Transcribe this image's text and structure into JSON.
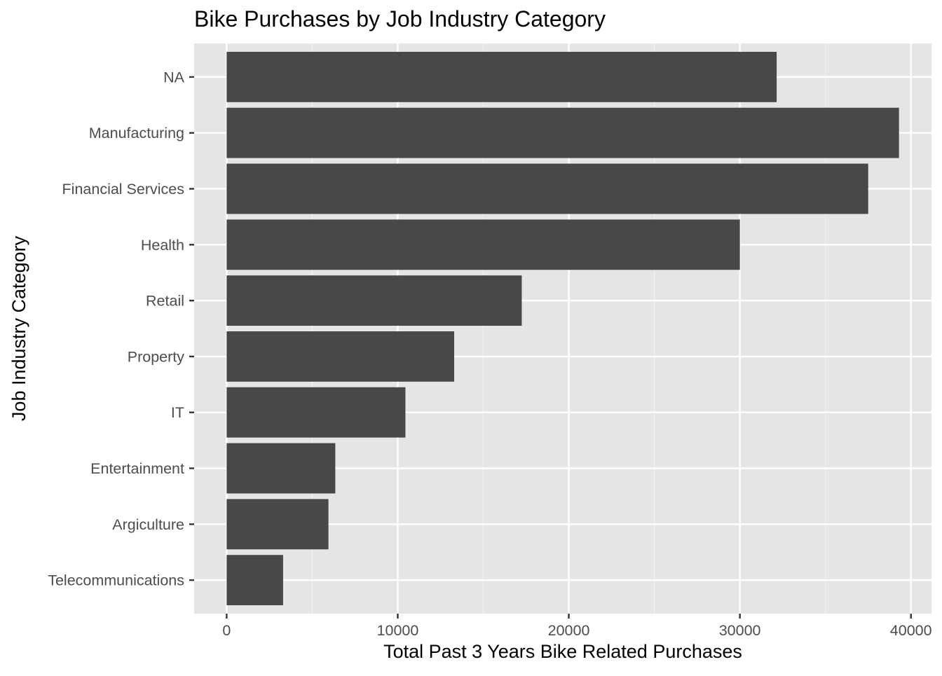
{
  "chart_data": {
    "type": "bar",
    "orientation": "horizontal",
    "title": "Bike Purchases by Job Industry Category",
    "xlabel": "Total Past 3 Years Bike Related Purchases",
    "ylabel": "Job Industry Category",
    "categories": [
      "NA",
      "Manufacturing",
      "Financial Services",
      "Health",
      "Retail",
      "Property",
      "IT",
      "Entertainment",
      "Argiculture",
      "Telecommunications"
    ],
    "values": [
      32150,
      39300,
      37500,
      30000,
      17250,
      13300,
      10450,
      6350,
      5950,
      3300
    ],
    "xlim": [
      -1900,
      41200
    ],
    "xticks": [
      0,
      10000,
      20000,
      30000,
      40000
    ],
    "xtick_labels": [
      "0",
      "10000",
      "20000",
      "30000",
      "40000"
    ],
    "grid": true,
    "colors": {
      "bar": "#484848",
      "panel": "#e5e5e5",
      "grid_major": "#ffffff",
      "grid_minor": "#f2f2f2",
      "tick_label": "#4d4d4d",
      "tick": "#333333",
      "text": "#000000"
    }
  }
}
